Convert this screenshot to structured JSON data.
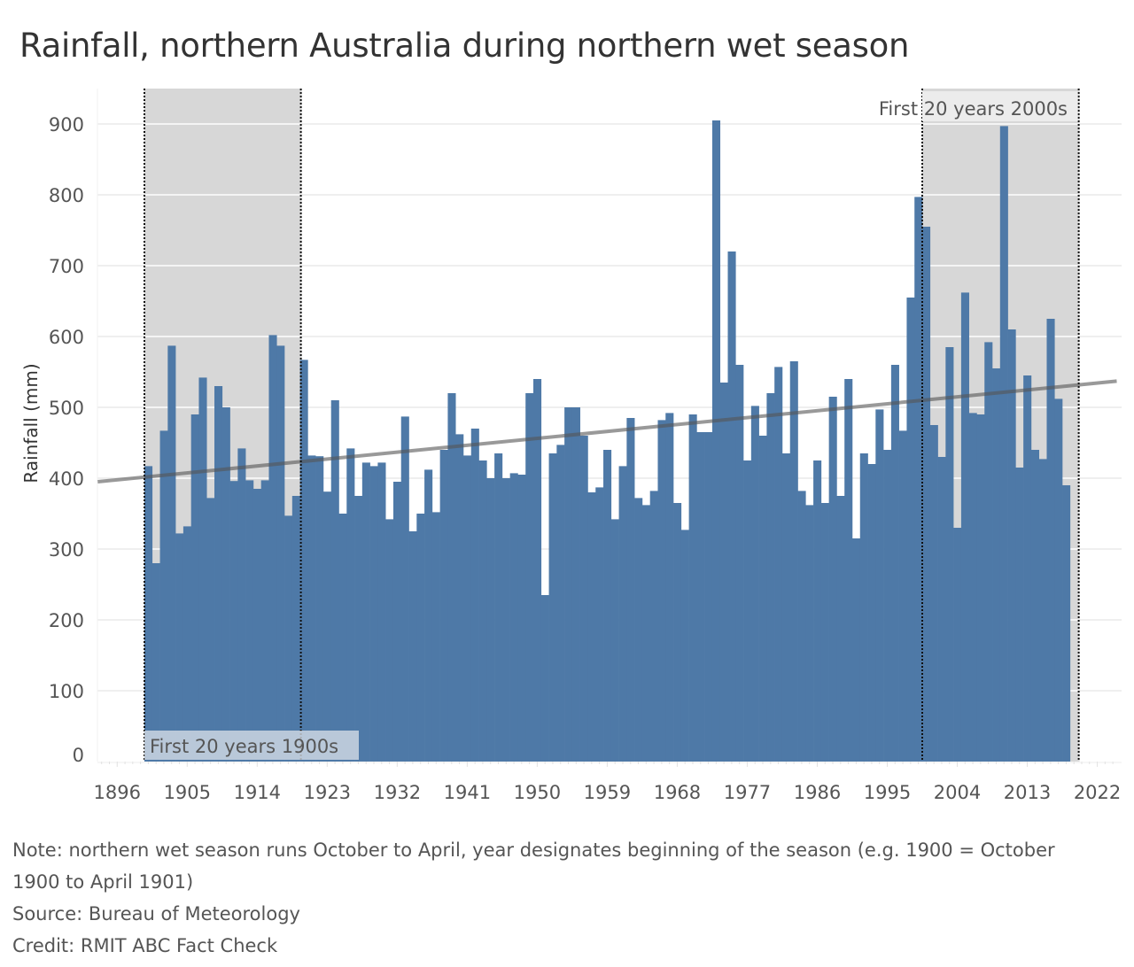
{
  "chart_data": {
    "type": "bar",
    "title": "Rainfall, northern Australia during northern wet season",
    "xlabel": "",
    "ylabel": "Rainfall (mm)",
    "ylim": [
      0,
      950
    ],
    "xlim": [
      1893,
      2024
    ],
    "grid": true,
    "yticks": [
      0,
      100,
      200,
      300,
      400,
      500,
      600,
      700,
      800,
      900
    ],
    "xticks": [
      1896,
      1905,
      1914,
      1923,
      1932,
      1941,
      1950,
      1959,
      1968,
      1977,
      1986,
      1995,
      2004,
      2013,
      2022
    ],
    "bar_color": "#4e79a7",
    "x": [
      1900,
      1901,
      1902,
      1903,
      1904,
      1905,
      1906,
      1907,
      1908,
      1909,
      1910,
      1911,
      1912,
      1913,
      1914,
      1915,
      1916,
      1917,
      1918,
      1919,
      1920,
      1921,
      1922,
      1923,
      1924,
      1925,
      1926,
      1927,
      1928,
      1929,
      1930,
      1931,
      1932,
      1933,
      1934,
      1935,
      1936,
      1937,
      1938,
      1939,
      1940,
      1941,
      1942,
      1943,
      1944,
      1945,
      1946,
      1947,
      1948,
      1949,
      1950,
      1951,
      1952,
      1953,
      1954,
      1955,
      1956,
      1957,
      1958,
      1959,
      1960,
      1961,
      1962,
      1963,
      1964,
      1965,
      1966,
      1967,
      1968,
      1969,
      1970,
      1971,
      1972,
      1973,
      1974,
      1975,
      1976,
      1977,
      1978,
      1979,
      1980,
      1981,
      1982,
      1983,
      1984,
      1985,
      1986,
      1987,
      1988,
      1989,
      1990,
      1991,
      1992,
      1993,
      1994,
      1995,
      1996,
      1997,
      1998,
      1999,
      2000,
      2001,
      2002,
      2003,
      2004,
      2005,
      2006,
      2007,
      2008,
      2009,
      2010,
      2011,
      2012,
      2013,
      2014,
      2015,
      2016,
      2017,
      2018
    ],
    "values": [
      417,
      280,
      467,
      587,
      322,
      332,
      490,
      542,
      372,
      530,
      500,
      396,
      442,
      397,
      385,
      397,
      602,
      587,
      347,
      375,
      567,
      432,
      431,
      381,
      510,
      350,
      442,
      375,
      422,
      417,
      422,
      342,
      395,
      487,
      325,
      350,
      412,
      352,
      440,
      520,
      462,
      432,
      470,
      425,
      400,
      435,
      400,
      407,
      405,
      520,
      540,
      235,
      435,
      447,
      500,
      500,
      460,
      380,
      387,
      440,
      342,
      417,
      485,
      372,
      362,
      382,
      482,
      492,
      365,
      327,
      490,
      465,
      465,
      905,
      535,
      720,
      560,
      425,
      502,
      460,
      520,
      557,
      435,
      565,
      382,
      362,
      425,
      365,
      515,
      375,
      540,
      315,
      435,
      420,
      497,
      440,
      560,
      467,
      655,
      797,
      755,
      475,
      430,
      585,
      330,
      662,
      492,
      490,
      592,
      555,
      897,
      610,
      415,
      545,
      440,
      427,
      625,
      512,
      390
    ],
    "trend_line": {
      "start": {
        "x": 1894,
        "y": 395
      },
      "end": {
        "x": 2025,
        "y": 537
      },
      "color": "#555555"
    },
    "annotations": [
      {
        "label": "First 20 years 1900s",
        "from": 1900,
        "to": 1919,
        "label_position": "bottom-left"
      },
      {
        "label": "First 20 years 2000s",
        "from": 2000,
        "to": 2019,
        "label_position": "top-right"
      }
    ]
  },
  "notes": {
    "note_line1": "Note: northern wet season runs October to April, year designates beginning of the season (e.g. 1900 = October",
    "note_line2": "1900 to April 1901)",
    "source": "Source: Bureau of Meteorology",
    "credit": "Credit: RMIT ABC Fact Check"
  }
}
